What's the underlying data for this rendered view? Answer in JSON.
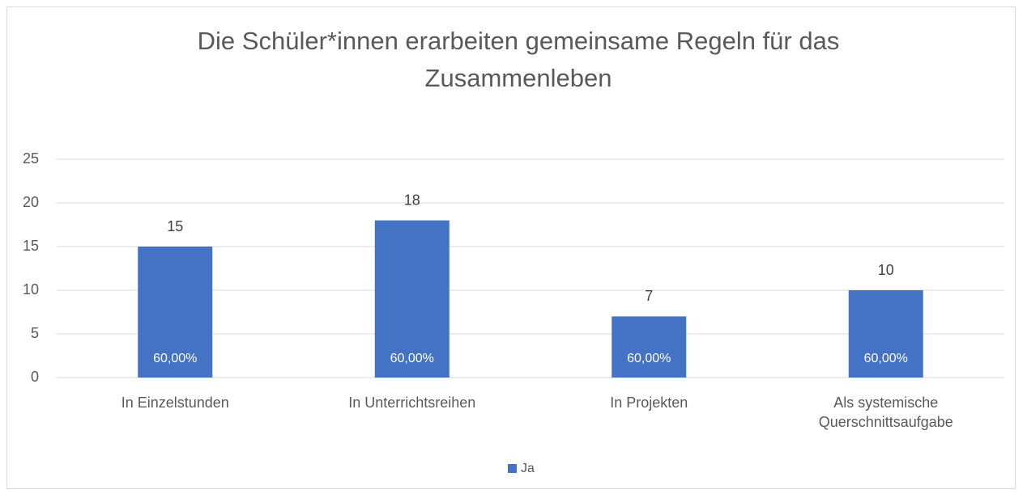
{
  "chart_data": {
    "type": "bar",
    "title": "Die Schüler*innen erarbeiten gemeinsame Regeln für das Zusammenleben",
    "categories": [
      "In Einzelstunden",
      "In Unterrichtsreihen",
      "In Projekten",
      "Als systemische Querschnittsaufgabe"
    ],
    "series": [
      {
        "name": "Ja",
        "color": "#4472c4",
        "values": [
          15,
          18,
          7,
          10
        ],
        "percentages": [
          60,
          60,
          60,
          60
        ],
        "percentage_labels": [
          "60,00%",
          "60,00%",
          "60,00%",
          "60,00%"
        ]
      }
    ],
    "ylim": [
      0,
      25
    ],
    "yticks": [
      0,
      5,
      10,
      15,
      20,
      25
    ],
    "grid": true,
    "legend": "bottom"
  }
}
